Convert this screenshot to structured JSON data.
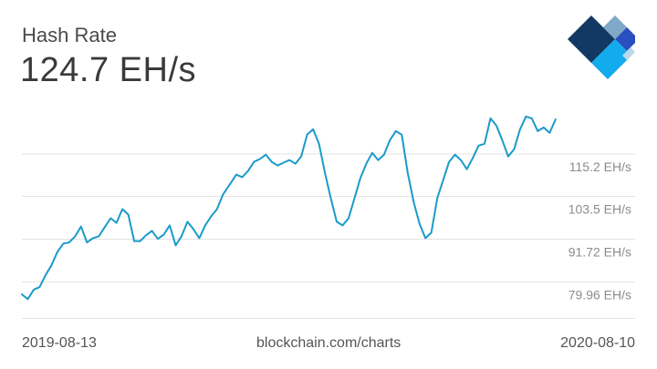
{
  "header": {
    "title": "Hash Rate",
    "current_value": "124.7 EH/s"
  },
  "footer": {
    "start_date": "2019-08-13",
    "source": "blockchain.com/charts",
    "end_date": "2020-08-10"
  },
  "logo": {
    "icon": "blockchain-logo-icon"
  },
  "colors": {
    "line": "#1a9bc9",
    "grid": "#e3e3e3",
    "label": "#8c8c8c"
  },
  "chart_data": {
    "type": "line",
    "title": "Hash Rate",
    "xlabel": "",
    "ylabel": "",
    "x_range": [
      "2019-08-13",
      "2020-08-10"
    ],
    "ylim": [
      70,
      130
    ],
    "grid": true,
    "y_ticks": [
      {
        "value": 115.2,
        "label": "115.2 EH/s"
      },
      {
        "value": 103.5,
        "label": "103.5 EH/s"
      },
      {
        "value": 91.72,
        "label": "91.72 EH/s"
      },
      {
        "value": 79.96,
        "label": "79.96 EH/s"
      }
    ],
    "series": [
      {
        "values": [
          [
            "2019-08-13",
            76.5
          ],
          [
            "2019-08-17",
            75.2
          ],
          [
            "2019-08-21",
            77.8
          ],
          [
            "2019-08-25",
            78.5
          ],
          [
            "2019-08-29",
            81.8
          ],
          [
            "2019-09-02",
            84.5
          ],
          [
            "2019-09-06",
            88.2
          ],
          [
            "2019-09-10",
            90.5
          ],
          [
            "2019-09-14",
            90.8
          ],
          [
            "2019-09-18",
            92.5
          ],
          [
            "2019-09-22",
            95.2
          ],
          [
            "2019-09-26",
            90.8
          ],
          [
            "2019-09-30",
            92.0
          ],
          [
            "2019-10-04",
            92.5
          ],
          [
            "2019-10-08",
            95.0
          ],
          [
            "2019-10-12",
            97.5
          ],
          [
            "2019-10-16",
            96.2
          ],
          [
            "2019-10-20",
            100.0
          ],
          [
            "2019-10-24",
            98.5
          ],
          [
            "2019-10-28",
            91.2
          ],
          [
            "2019-11-01",
            91.2
          ],
          [
            "2019-11-05",
            92.8
          ],
          [
            "2019-11-09",
            94.0
          ],
          [
            "2019-11-13",
            91.8
          ],
          [
            "2019-11-17",
            93.0
          ],
          [
            "2019-11-21",
            95.5
          ],
          [
            "2019-11-25",
            90.0
          ],
          [
            "2019-11-29",
            92.5
          ],
          [
            "2019-12-03",
            96.5
          ],
          [
            "2019-12-07",
            94.5
          ],
          [
            "2019-12-11",
            92.0
          ],
          [
            "2019-12-15",
            95.5
          ],
          [
            "2019-12-19",
            98.0
          ],
          [
            "2019-12-23",
            100.0
          ],
          [
            "2019-12-27",
            104.0
          ],
          [
            "2020-01-01",
            107.0
          ],
          [
            "2020-01-05",
            109.5
          ],
          [
            "2020-01-09",
            108.8
          ],
          [
            "2020-01-13",
            110.5
          ],
          [
            "2020-01-17",
            113.0
          ],
          [
            "2020-01-21",
            113.8
          ],
          [
            "2020-01-25",
            115.0
          ],
          [
            "2020-01-29",
            113.0
          ],
          [
            "2020-02-02",
            112.0
          ],
          [
            "2020-02-06",
            112.8
          ],
          [
            "2020-02-10",
            113.5
          ],
          [
            "2020-02-14",
            112.5
          ],
          [
            "2020-02-18",
            114.5
          ],
          [
            "2020-02-22",
            120.5
          ],
          [
            "2020-02-26",
            122.0
          ],
          [
            "2020-03-01",
            118.0
          ],
          [
            "2020-03-05",
            110.0
          ],
          [
            "2020-03-09",
            103.0
          ],
          [
            "2020-03-13",
            96.5
          ],
          [
            "2020-03-17",
            95.5
          ],
          [
            "2020-03-21",
            97.5
          ],
          [
            "2020-03-25",
            103.0
          ],
          [
            "2020-03-29",
            108.5
          ],
          [
            "2020-04-02",
            112.5
          ],
          [
            "2020-04-06",
            115.5
          ],
          [
            "2020-04-10",
            113.5
          ],
          [
            "2020-04-14",
            115.0
          ],
          [
            "2020-04-18",
            119.0
          ],
          [
            "2020-04-22",
            121.5
          ],
          [
            "2020-04-26",
            120.5
          ],
          [
            "2020-04-30",
            110.0
          ],
          [
            "2020-05-04",
            102.0
          ],
          [
            "2020-05-08",
            96.0
          ],
          [
            "2020-05-12",
            92.0
          ],
          [
            "2020-05-16",
            93.5
          ],
          [
            "2020-05-20",
            103.0
          ],
          [
            "2020-05-24",
            108.0
          ],
          [
            "2020-05-28",
            113.0
          ],
          [
            "2020-06-01",
            115.0
          ],
          [
            "2020-06-05",
            113.5
          ],
          [
            "2020-06-09",
            111.0
          ],
          [
            "2020-06-13",
            114.0
          ],
          [
            "2020-06-17",
            117.5
          ],
          [
            "2020-06-21",
            118.0
          ],
          [
            "2020-06-25",
            125.0
          ],
          [
            "2020-06-29",
            123.0
          ],
          [
            "2020-07-03",
            119.0
          ],
          [
            "2020-07-07",
            114.5
          ],
          [
            "2020-07-11",
            116.5
          ],
          [
            "2020-07-15",
            122.0
          ],
          [
            "2020-07-19",
            125.5
          ],
          [
            "2020-07-23",
            125.0
          ],
          [
            "2020-07-27",
            121.5
          ],
          [
            "2020-07-31",
            122.5
          ],
          [
            "2020-08-04",
            121.0
          ],
          [
            "2020-08-08",
            124.7
          ]
        ]
      }
    ]
  }
}
